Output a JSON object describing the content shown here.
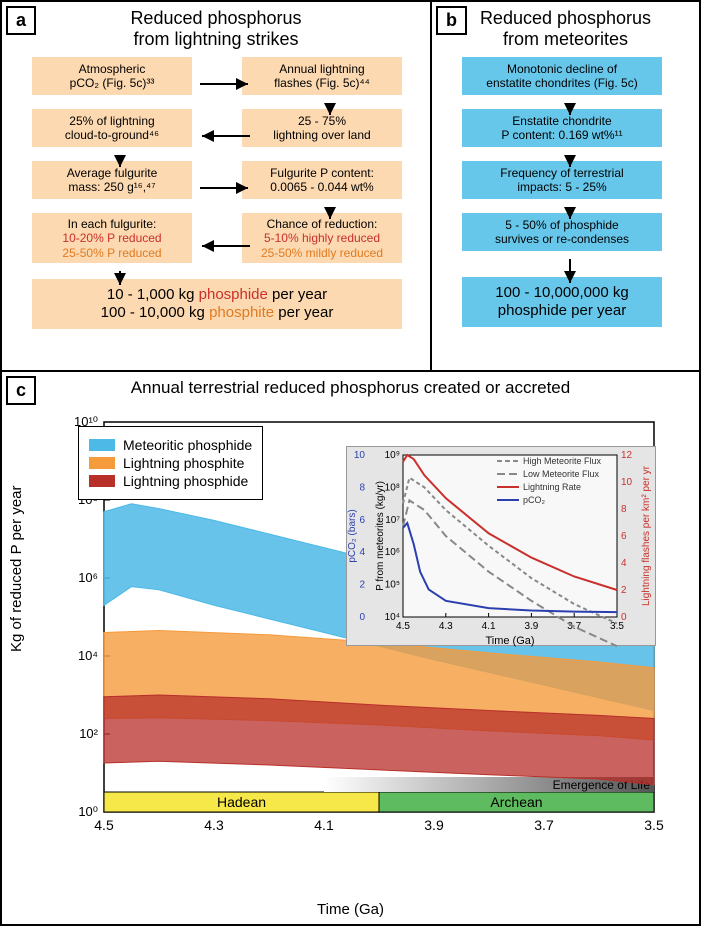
{
  "panel_a": {
    "label": "a",
    "title_l1": "Reduced phosphorus",
    "title_l2": "from lightning strikes",
    "boxes": {
      "pco2_l1": "Atmospheric",
      "pco2_l2": "pCO₂ (Fig. 5c)³³",
      "flashes_l1": "Annual lightning",
      "flashes_l2": "flashes (Fig. 5c)⁴⁴",
      "cloud_l1": "25% of lightning",
      "cloud_l2": "cloud-to-ground⁴⁶",
      "overland_l1": "25 - 75%",
      "overland_l2": "lightning over land",
      "mass_l1": "Average fulgurite",
      "mass_l2": "mass: 250 g¹⁶,⁴⁷",
      "pcontent_l1": "Fulgurite P content:",
      "pcontent_l2": "0.0065 - 0.044 wt%",
      "each_l1": "In each fulgurite:",
      "each_l2": "10-20% P reduced",
      "each_l3": "25-50% P reduced",
      "chance_l1": "Chance of reduction:",
      "chance_l2": "5-10% highly reduced",
      "chance_l3": "25-50% mildly reduced",
      "result_l1a": "10 - 1,000 kg ",
      "result_l1b": "phosphide",
      "result_l1c": " per year",
      "result_l2a": "100 - 10,000 kg ",
      "result_l2b": "phosphite",
      "result_l2c": " per year"
    },
    "colors": {
      "box": "#fcd9b0"
    }
  },
  "panel_b": {
    "label": "b",
    "title_l1": "Reduced phosphorus",
    "title_l2": "from meteorites",
    "boxes": {
      "decline_l1": "Monotonic decline of",
      "decline_l2": "enstatite chondrites (Fig. 5c)",
      "content_l1": "Enstatite chondrite",
      "content_l2": "P content: 0.169 wt%¹¹",
      "freq_l1": "Frequency of terrestrial",
      "freq_l2": "impacts: 5 - 25%",
      "survive_l1": "5 - 50% of phosphide",
      "survive_l2": "survives or re-condenses",
      "result_l1": "100 - 10,000,000 kg",
      "result_l2": "phosphide per year"
    },
    "colors": {
      "box": "#66c7eb"
    }
  },
  "panel_c": {
    "label": "c",
    "title": "Annual terrestrial reduced phosphorus created or accreted",
    "legend": {
      "items": [
        {
          "label": "Meteoritic phosphide",
          "color": "#4db9e6"
        },
        {
          "label": "Lightning phosphite",
          "color": "#f59b3c"
        },
        {
          "label": "Lightning phosphide",
          "color": "#b82f2a"
        }
      ]
    },
    "xaxis": {
      "label": "Time (Ga)",
      "min": 4.5,
      "max": 3.5,
      "ticks": [
        4.5,
        4.3,
        4.1,
        3.9,
        3.7,
        3.5
      ]
    },
    "yaxis": {
      "label": "Kg of reduced P per year",
      "log": true,
      "min": 1,
      "max": 10000000000.0,
      "ticks": [
        "10⁰",
        "10²",
        "10⁴",
        "10⁶",
        "10⁸",
        "10¹⁰"
      ]
    },
    "era_bars": {
      "hadean": {
        "label": "Hadean",
        "start": 4.5,
        "end": 4.0,
        "color": "#f7e84a"
      },
      "archean": {
        "label": "Archean",
        "start": 4.0,
        "end": 3.5,
        "color": "#5fbb5f"
      }
    },
    "emergence": {
      "label": "Emergence of Life",
      "start": 4.1,
      "end": 3.5
    },
    "bands": {
      "meteoritic": {
        "color": "#4db9e6",
        "opacity": 0.85,
        "upper": [
          [
            4.5,
            50000000.0
          ],
          [
            4.45,
            80000000.0
          ],
          [
            4.4,
            60000000.0
          ],
          [
            4.3,
            30000000.0
          ],
          [
            4.1,
            6000000.0
          ],
          [
            3.9,
            1200000.0
          ],
          [
            3.7,
            250000.0
          ],
          [
            3.5,
            50000.0
          ]
        ],
        "lower": [
          [
            4.5,
            200000.0
          ],
          [
            4.45,
            600000.0
          ],
          [
            4.4,
            500000.0
          ],
          [
            4.3,
            200000.0
          ],
          [
            4.1,
            40000.0
          ],
          [
            3.9,
            8000.0
          ],
          [
            3.7,
            1800.0
          ],
          [
            3.5,
            400.0
          ]
        ]
      },
      "phosphite": {
        "color": "#f59b3c",
        "opacity": 0.8,
        "upper": [
          [
            4.5,
            40000.0
          ],
          [
            4.4,
            45000.0
          ],
          [
            4.2,
            35000.0
          ],
          [
            4.0,
            22000.0
          ],
          [
            3.8,
            12000.0
          ],
          [
            3.6,
            7000.0
          ],
          [
            3.5,
            5000.0
          ]
        ],
        "lower": [
          [
            4.5,
            250.0
          ],
          [
            4.4,
            260.0
          ],
          [
            4.2,
            220.0
          ],
          [
            4.0,
            170.0
          ],
          [
            3.8,
            120.0
          ],
          [
            3.6,
            90.0
          ],
          [
            3.5,
            70.0
          ]
        ]
      },
      "phosphide": {
        "color": "#b82f2a",
        "opacity": 0.75,
        "upper": [
          [
            4.5,
            900.0
          ],
          [
            4.4,
            1000.0
          ],
          [
            4.2,
            800.0
          ],
          [
            4.0,
            550.0
          ],
          [
            3.8,
            400.0
          ],
          [
            3.6,
            300.0
          ],
          [
            3.5,
            250.0
          ]
        ],
        "lower": [
          [
            4.5,
            18.0
          ],
          [
            4.4,
            20.0
          ],
          [
            4.2,
            16.0
          ],
          [
            4.0,
            12.0
          ],
          [
            3.8,
            9
          ],
          [
            3.6,
            7
          ],
          [
            3.5,
            5
          ]
        ]
      }
    },
    "inset": {
      "bg": "#e5e5e5",
      "x": {
        "label": "Time (Ga)",
        "min": 4.5,
        "max": 3.5,
        "ticks": [
          4.5,
          4.3,
          4.1,
          3.9,
          3.7,
          3.5
        ]
      },
      "y_left": {
        "label": "P from meteorites (kg/yr)",
        "color": "#000",
        "ticks": [
          "10⁴",
          "10⁵",
          "10⁶",
          "10⁷",
          "10⁸",
          "10⁹"
        ]
      },
      "y_blue": {
        "label": "pCO₂ (bars)",
        "color": "#2b3fae",
        "ticks": [
          "0",
          "2",
          "4",
          "6",
          "8",
          "10"
        ]
      },
      "y_red": {
        "label": "Lightning flashes per km² per yr",
        "color": "#c9302c",
        "ticks": [
          "0",
          "2",
          "4",
          "6",
          "8",
          "10",
          "12"
        ]
      },
      "legend": [
        {
          "label": "High Meteorite Flux",
          "color": "#888",
          "dash": "5,3"
        },
        {
          "label": "Low Meteorite Flux",
          "color": "#888",
          "dash": "8,4"
        },
        {
          "label": "Lightning Rate",
          "color": "#c9302c",
          "dash": ""
        },
        {
          "label": "pCO₂",
          "color": "#2b3fae",
          "dash": ""
        }
      ],
      "series": {
        "high": [
          [
            4.5,
            7.5
          ],
          [
            4.47,
            8.3
          ],
          [
            4.4,
            8.0
          ],
          [
            4.3,
            7.3
          ],
          [
            4.1,
            6.2
          ],
          [
            3.9,
            5.2
          ],
          [
            3.7,
            4.4
          ],
          [
            3.5,
            3.8
          ]
        ],
        "low": [
          [
            4.5,
            6.8
          ],
          [
            4.47,
            7.6
          ],
          [
            4.4,
            7.3
          ],
          [
            4.3,
            6.5
          ],
          [
            4.1,
            5.4
          ],
          [
            3.9,
            4.5
          ],
          [
            3.7,
            3.7
          ],
          [
            3.5,
            3.1
          ]
        ],
        "lightning": [
          [
            4.5,
            11.5
          ],
          [
            4.48,
            12
          ],
          [
            4.45,
            11.7
          ],
          [
            4.4,
            10.5
          ],
          [
            4.3,
            8.8
          ],
          [
            4.1,
            6.2
          ],
          [
            3.9,
            4.4
          ],
          [
            3.7,
            3.0
          ],
          [
            3.5,
            2.0
          ]
        ],
        "pco2": [
          [
            4.5,
            5.5
          ],
          [
            4.48,
            5.8
          ],
          [
            4.45,
            4.5
          ],
          [
            4.42,
            2.8
          ],
          [
            4.38,
            1.7
          ],
          [
            4.3,
            1.0
          ],
          [
            4.1,
            0.55
          ],
          [
            3.9,
            0.4
          ],
          [
            3.7,
            0.33
          ],
          [
            3.5,
            0.3
          ]
        ]
      }
    }
  }
}
